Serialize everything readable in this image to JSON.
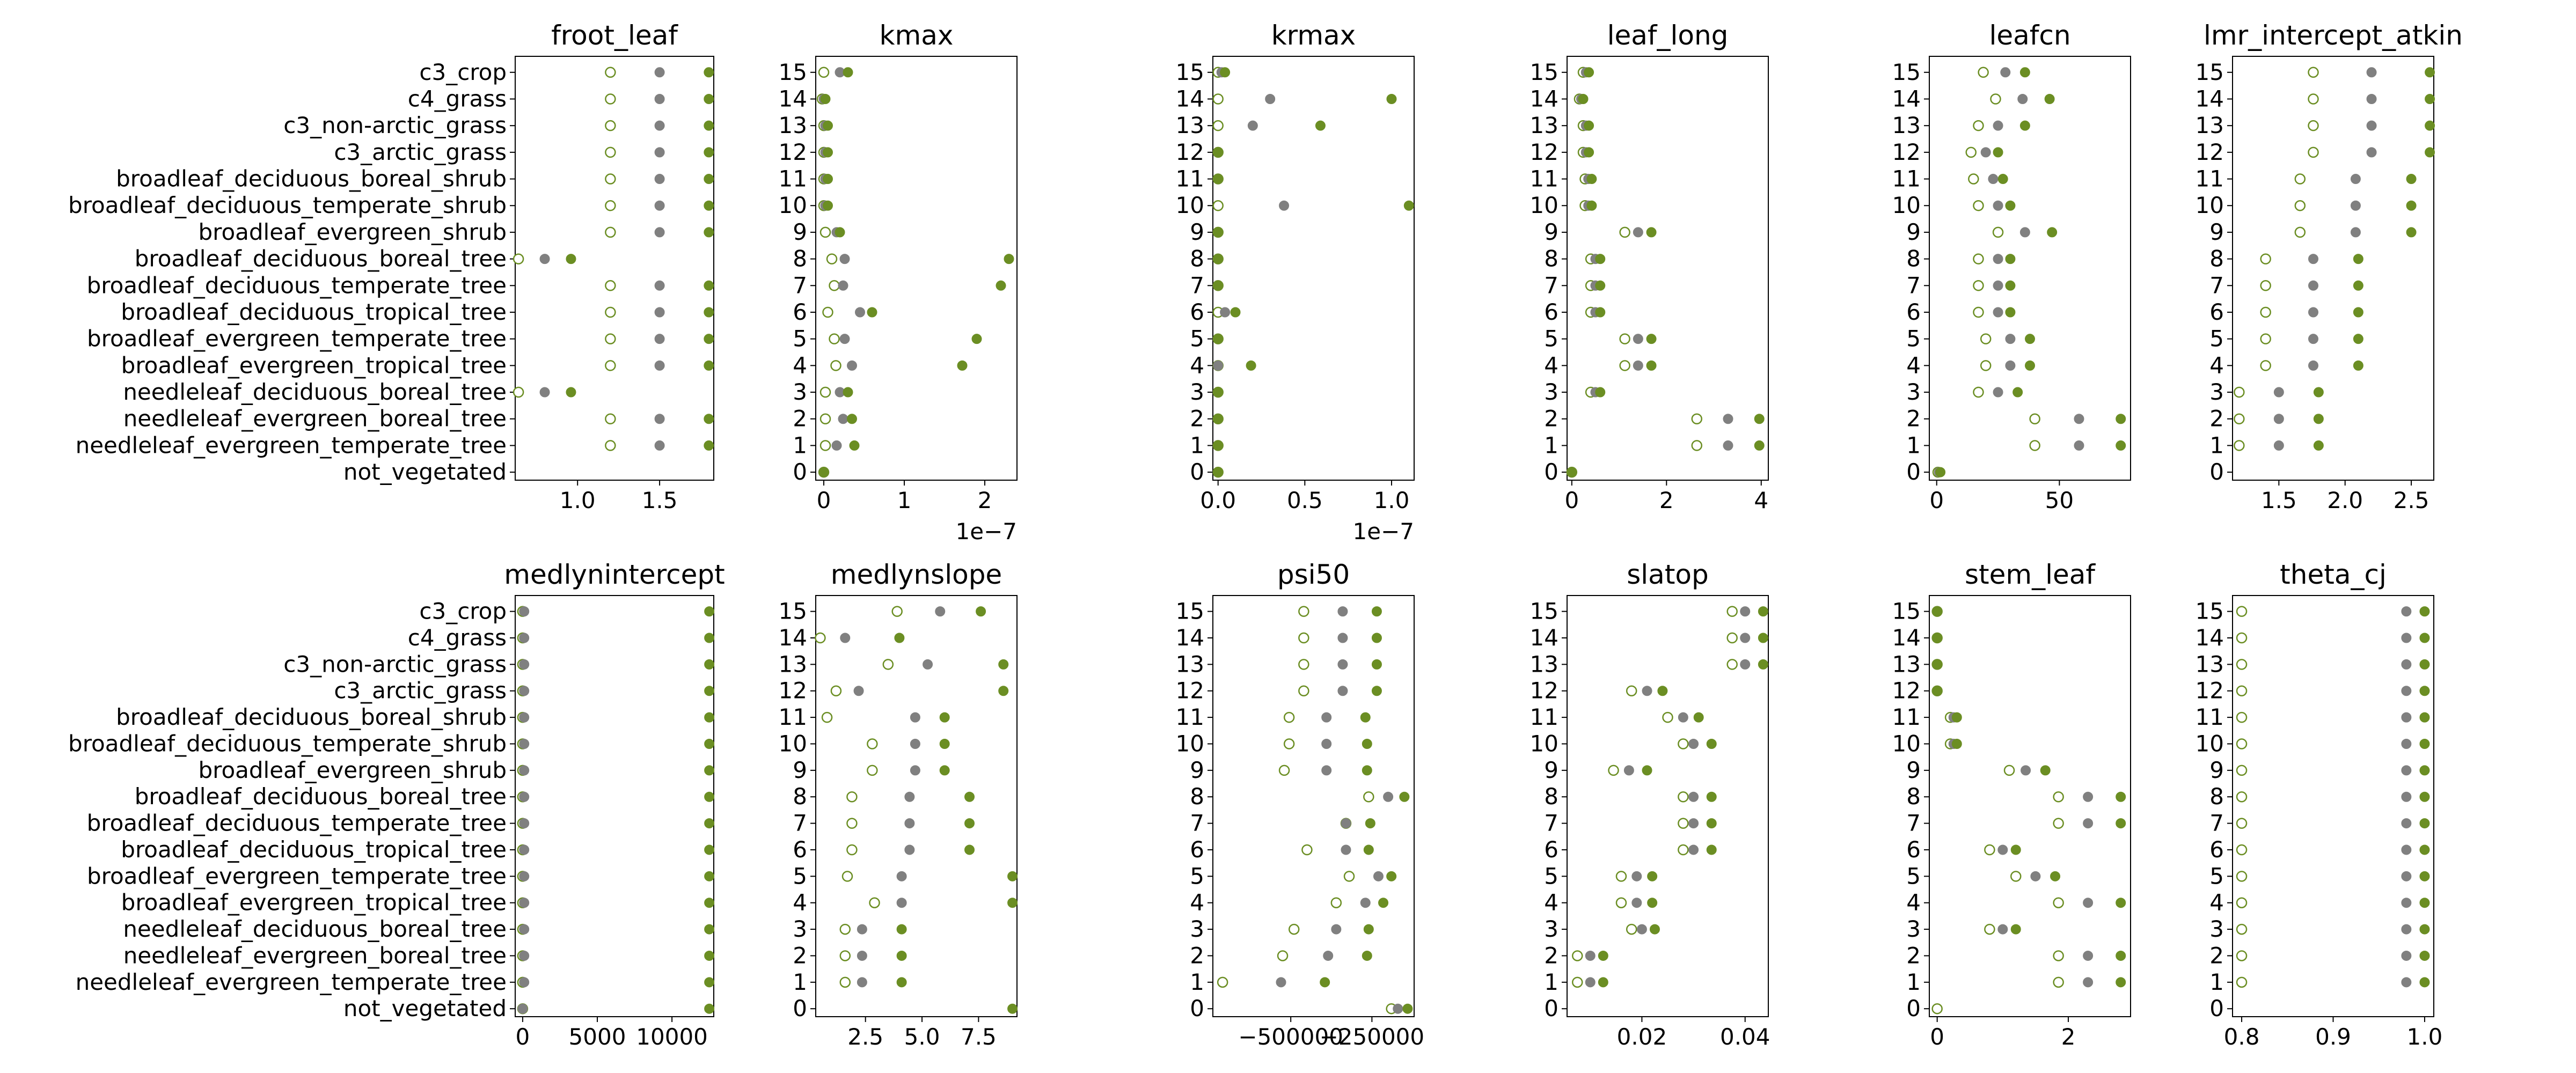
{
  "colors": {
    "ref": "#808080",
    "open": "#6b8e23",
    "filled": "#6b8e23",
    "frame": "#000000"
  },
  "pft_names": [
    "not_vegetated",
    "needleleaf_evergreen_temperate_tree",
    "needleleaf_evergreen_boreal_tree",
    "needleleaf_deciduous_boreal_tree",
    "broadleaf_evergreen_tropical_tree",
    "broadleaf_evergreen_temperate_tree",
    "broadleaf_deciduous_tropical_tree",
    "broadleaf_deciduous_temperate_tree",
    "broadleaf_deciduous_boreal_tree",
    "broadleaf_evergreen_shrub",
    "broadleaf_deciduous_temperate_shrub",
    "broadleaf_deciduous_boreal_shrub",
    "c3_arctic_grass",
    "c3_non-arctic_grass",
    "c4_grass",
    "c3_crop"
  ],
  "pft_numbers": [
    "0",
    "1",
    "2",
    "3",
    "4",
    "5",
    "6",
    "7",
    "8",
    "9",
    "10",
    "11",
    "12",
    "13",
    "14",
    "15"
  ],
  "chart_data": [
    {
      "type": "scatter",
      "title": "froot_leaf",
      "xlim": [
        0.62,
        1.83
      ],
      "xticks": [
        1.0,
        1.5
      ],
      "xtick_labels": [
        "1.0",
        "1.5"
      ],
      "offset_label": "",
      "ylabels": "names",
      "ylim": [
        -0.3,
        15.6
      ],
      "yticks": [
        0,
        1,
        2,
        3,
        4,
        5,
        6,
        7,
        8,
        9,
        10,
        11,
        12,
        13,
        14,
        15
      ],
      "ref": [
        null,
        1.5,
        1.5,
        0.8,
        1.5,
        1.5,
        1.5,
        1.5,
        0.8,
        1.5,
        1.5,
        1.5,
        1.5,
        1.5,
        1.5,
        1.5
      ],
      "low": [
        null,
        1.2,
        1.2,
        0.64,
        1.2,
        1.2,
        1.2,
        1.2,
        0.64,
        1.2,
        1.2,
        1.2,
        1.2,
        1.2,
        1.2,
        1.2
      ],
      "high": [
        null,
        1.8,
        1.8,
        0.96,
        1.8,
        1.8,
        1.8,
        1.8,
        0.96,
        1.8,
        1.8,
        1.8,
        1.8,
        1.8,
        1.8,
        1.8
      ]
    },
    {
      "type": "scatter",
      "title": "kmax",
      "xlim": [
        -0.1,
        2.4
      ],
      "xticks": [
        0,
        1,
        2
      ],
      "xtick_labels": [
        "0",
        "1",
        "2"
      ],
      "offset_label": "1e−7",
      "ylabels": "numbers",
      "ylim": [
        -0.3,
        15.6
      ],
      "yticks": [
        0,
        1,
        2,
        3,
        4,
        5,
        6,
        7,
        8,
        9,
        10,
        11,
        12,
        13,
        14,
        15
      ],
      "ref": [
        0,
        0.16,
        0.24,
        0.2,
        0.35,
        0.26,
        0.45,
        0.24,
        0.26,
        0.16,
        0.02,
        0.02,
        0.02,
        0.02,
        0.0,
        0.2
      ],
      "low": [
        0,
        0.02,
        0.02,
        0.02,
        0.15,
        0.13,
        0.05,
        0.13,
        0.1,
        0.02,
        0.0,
        0.0,
        0.0,
        0.0,
        -0.02,
        0.0
      ],
      "high": [
        0,
        0.38,
        0.35,
        0.3,
        1.72,
        1.9,
        0.6,
        2.2,
        2.3,
        0.2,
        0.05,
        0.05,
        0.05,
        0.05,
        0.02,
        0.3
      ]
    },
    {
      "type": "scatter",
      "title": "krmax",
      "xlim": [
        -0.03,
        1.13
      ],
      "xticks": [
        0.0,
        0.5,
        1.0
      ],
      "xtick_labels": [
        "0.0",
        "0.5",
        "1.0"
      ],
      "offset_label": "1e−7",
      "ylabels": "numbers",
      "ylim": [
        -0.3,
        15.6
      ],
      "yticks": [
        0,
        1,
        2,
        3,
        4,
        5,
        6,
        7,
        8,
        9,
        10,
        11,
        12,
        13,
        14,
        15
      ],
      "ref": [
        0,
        0,
        0,
        0,
        0,
        0,
        0.04,
        0.0,
        0.0,
        0.0,
        0.38,
        0.0,
        0.0,
        0.2,
        0.3,
        0.02
      ],
      "low": [
        0,
        0,
        0,
        0,
        0,
        0,
        0.0,
        0.0,
        0.0,
        0.0,
        0.0,
        0.0,
        0.0,
        0.0,
        0.0,
        0.0
      ],
      "high": [
        0,
        0,
        0,
        0,
        0.19,
        0,
        0.1,
        0.0,
        0.0,
        0.0,
        1.1,
        0.0,
        0.0,
        0.59,
        1.0,
        0.04
      ]
    },
    {
      "type": "scatter",
      "title": "leaf_long",
      "xlim": [
        -0.1,
        4.15
      ],
      "xticks": [
        0,
        2,
        4
      ],
      "xtick_labels": [
        "0",
        "2",
        "4"
      ],
      "offset_label": "",
      "ylabels": "numbers",
      "ylim": [
        -0.3,
        15.6
      ],
      "yticks": [
        0,
        1,
        2,
        3,
        4,
        5,
        6,
        7,
        8,
        9,
        10,
        11,
        12,
        13,
        14,
        15
      ],
      "ref": [
        0,
        3.3,
        3.3,
        0.5,
        1.4,
        1.4,
        0.5,
        0.5,
        0.5,
        1.4,
        0.35,
        0.35,
        0.3,
        0.3,
        0.2,
        0.3
      ],
      "low": [
        0,
        2.64,
        2.64,
        0.4,
        1.12,
        1.12,
        0.4,
        0.4,
        0.4,
        1.12,
        0.28,
        0.28,
        0.24,
        0.24,
        0.16,
        0.24
      ],
      "high": [
        0,
        3.96,
        3.96,
        0.6,
        1.68,
        1.68,
        0.6,
        0.6,
        0.6,
        1.68,
        0.42,
        0.42,
        0.36,
        0.36,
        0.24,
        0.36
      ]
    },
    {
      "type": "scatter",
      "title": "leafcn",
      "xlim": [
        -3,
        79
      ],
      "xticks": [
        0,
        50
      ],
      "xtick_labels": [
        "0",
        "50"
      ],
      "offset_label": "",
      "ylabels": "numbers",
      "ylim": [
        -0.3,
        15.6
      ],
      "yticks": [
        0,
        1,
        2,
        3,
        4,
        5,
        6,
        7,
        8,
        9,
        10,
        11,
        12,
        13,
        14,
        15
      ],
      "ref": [
        1,
        58,
        58,
        25,
        30,
        30,
        25,
        25,
        25,
        36,
        25,
        23,
        20,
        25,
        35,
        28
      ],
      "low": [
        0.5,
        40,
        40,
        17,
        20,
        20,
        17,
        17,
        17,
        25,
        17,
        15,
        14,
        17,
        24,
        19
      ],
      "high": [
        1.5,
        75,
        75,
        33,
        38,
        38,
        30,
        30,
        30,
        47,
        30,
        27,
        25,
        36,
        46,
        36
      ]
    },
    {
      "type": "scatter",
      "title": "lmr_intercept_atkin",
      "xlim": [
        1.15,
        2.67
      ],
      "xticks": [
        1.5,
        2.0,
        2.5
      ],
      "xtick_labels": [
        "1.5",
        "2.0",
        "2.5"
      ],
      "offset_label": "",
      "ylabels": "numbers",
      "ylim": [
        -0.3,
        15.6
      ],
      "yticks": [
        0,
        1,
        2,
        3,
        4,
        5,
        6,
        7,
        8,
        9,
        10,
        11,
        12,
        13,
        14,
        15
      ],
      "ref": [
        null,
        1.5,
        1.5,
        1.5,
        1.76,
        1.76,
        1.76,
        1.76,
        1.76,
        2.08,
        2.08,
        2.08,
        2.2,
        2.2,
        2.2,
        2.2
      ],
      "low": [
        null,
        1.2,
        1.2,
        1.2,
        1.4,
        1.4,
        1.4,
        1.4,
        1.4,
        1.66,
        1.66,
        1.66,
        1.76,
        1.76,
        1.76,
        1.76
      ],
      "high": [
        null,
        1.8,
        1.8,
        1.8,
        2.1,
        2.1,
        2.1,
        2.1,
        2.1,
        2.5,
        2.5,
        2.5,
        2.64,
        2.64,
        2.64,
        2.64
      ]
    },
    {
      "type": "scatter",
      "title": "medlynintercept",
      "xlim": [
        -500,
        12800
      ],
      "xticks": [
        0,
        5000,
        10000
      ],
      "xtick_labels": [
        "0",
        "5000",
        "10000"
      ],
      "offset_label": "",
      "ylabels": "names",
      "ylim": [
        -0.3,
        15.6
      ],
      "yticks": [
        0,
        1,
        2,
        3,
        4,
        5,
        6,
        7,
        8,
        9,
        10,
        11,
        12,
        13,
        14,
        15
      ],
      "ref": [
        0,
        100,
        100,
        100,
        100,
        100,
        100,
        100,
        100,
        100,
        100,
        100,
        100,
        100,
        100,
        100
      ],
      "low": [
        0,
        0,
        0,
        0,
        0,
        0,
        0,
        0,
        0,
        0,
        0,
        0,
        0,
        0,
        0,
        0
      ],
      "high": [
        12500,
        12500,
        12500,
        12500,
        12500,
        12500,
        12500,
        12500,
        12500,
        12500,
        12500,
        12500,
        12500,
        12500,
        12500,
        12500
      ]
    },
    {
      "type": "scatter",
      "title": "medlynslope",
      "xlim": [
        0.3,
        9.2
      ],
      "xticks": [
        2.5,
        5.0,
        7.5
      ],
      "xtick_labels": [
        "2.5",
        "5.0",
        "7.5"
      ],
      "offset_label": "",
      "ylabels": "numbers",
      "ylim": [
        -0.3,
        15.6
      ],
      "yticks": [
        0,
        1,
        2,
        3,
        4,
        5,
        6,
        7,
        8,
        9,
        10,
        11,
        12,
        13,
        14,
        15
      ],
      "ref": [
        null,
        2.35,
        2.35,
        2.35,
        4.1,
        4.1,
        4.45,
        4.45,
        4.45,
        4.7,
        4.7,
        4.7,
        2.2,
        5.25,
        1.6,
        5.8
      ],
      "low": [
        null,
        1.6,
        1.6,
        1.6,
        2.9,
        1.7,
        1.9,
        1.9,
        1.9,
        2.8,
        2.8,
        0.8,
        1.2,
        3.5,
        0.5,
        3.9
      ],
      "high": [
        9.0,
        4.1,
        4.1,
        4.1,
        9.0,
        9.0,
        7.1,
        7.1,
        7.1,
        6.0,
        6.0,
        6.0,
        8.6,
        8.6,
        4.0,
        7.6
      ]
    },
    {
      "type": "scatter",
      "title": "psi50",
      "xlim": [
        -740000,
        -120000
      ],
      "xticks": [
        -500000,
        -250000
      ],
      "xtick_labels": [
        "−500000",
        "−250000"
      ],
      "offset_label": "",
      "ylabels": "numbers",
      "ylim": [
        -0.3,
        15.6
      ],
      "yticks": [
        0,
        1,
        2,
        3,
        4,
        5,
        6,
        7,
        8,
        9,
        10,
        11,
        12,
        13,
        14,
        15
      ],
      "ref": [
        -170000,
        -530000,
        -385000,
        -360000,
        -270000,
        -230000,
        -330000,
        -330000,
        -200000,
        -390000,
        -390000,
        -390000,
        -340000,
        -340000,
        -340000,
        -340000
      ],
      "low": [
        -190000,
        -710000,
        -525000,
        -490000,
        -360000,
        -320000,
        -450000,
        -330000,
        -260000,
        -520000,
        -505000,
        -505000,
        -460000,
        -460000,
        -460000,
        -460000
      ],
      "high": [
        -140000,
        -395000,
        -265000,
        -260000,
        -215000,
        -190000,
        -260000,
        -255000,
        -150000,
        -265000,
        -265000,
        -270000,
        -235000,
        -235000,
        -235000,
        -235000
      ]
    },
    {
      "type": "scatter",
      "title": "slatop",
      "xlim": [
        0.0055,
        0.0445
      ],
      "xticks": [
        0.02,
        0.04
      ],
      "xtick_labels": [
        "0.02",
        "0.04"
      ],
      "offset_label": "",
      "ylabels": "numbers",
      "ylim": [
        -0.3,
        15.6
      ],
      "yticks": [
        0,
        1,
        2,
        3,
        4,
        5,
        6,
        7,
        8,
        9,
        10,
        11,
        12,
        13,
        14,
        15
      ],
      "ref": [
        null,
        0.01,
        0.01,
        0.02,
        0.019,
        0.019,
        0.03,
        0.03,
        0.03,
        0.0175,
        0.03,
        0.028,
        0.021,
        0.04,
        0.04,
        0.04
      ],
      "low": [
        null,
        0.0075,
        0.0075,
        0.018,
        0.016,
        0.016,
        0.028,
        0.028,
        0.028,
        0.0145,
        0.028,
        0.025,
        0.018,
        0.0375,
        0.0375,
        0.0375
      ],
      "high": [
        null,
        0.0125,
        0.0125,
        0.0225,
        0.022,
        0.022,
        0.0335,
        0.0335,
        0.0335,
        0.021,
        0.0335,
        0.031,
        0.024,
        0.0435,
        0.0435,
        0.0435
      ]
    },
    {
      "type": "scatter",
      "title": "stem_leaf",
      "xlim": [
        -0.12,
        2.95
      ],
      "xticks": [
        0,
        2
      ],
      "xtick_labels": [
        "0",
        "2"
      ],
      "offset_label": "",
      "ylabels": "numbers",
      "ylim": [
        -0.3,
        15.6
      ],
      "yticks": [
        0,
        1,
        2,
        3,
        4,
        5,
        6,
        7,
        8,
        9,
        10,
        11,
        12,
        13,
        14,
        15
      ],
      "ref": [
        null,
        2.3,
        2.3,
        1.0,
        2.3,
        1.5,
        1.0,
        2.3,
        2.3,
        1.35,
        0.25,
        0.25,
        0,
        0,
        0,
        0
      ],
      "low": [
        0,
        1.85,
        1.85,
        0.8,
        1.85,
        1.2,
        0.8,
        1.85,
        1.85,
        1.1,
        0.2,
        0.2,
        0,
        0,
        0,
        0
      ],
      "high": [
        null,
        2.8,
        2.8,
        1.2,
        2.8,
        1.8,
        1.2,
        2.8,
        2.8,
        1.65,
        0.3,
        0.3,
        0,
        0,
        0,
        0
      ]
    },
    {
      "type": "scatter",
      "title": "theta_cj",
      "xlim": [
        0.79,
        1.01
      ],
      "xticks": [
        0.8,
        0.9,
        1.0
      ],
      "xtick_labels": [
        "0.8",
        "0.9",
        "1.0"
      ],
      "offset_label": "",
      "ylabels": "numbers",
      "ylim": [
        -0.3,
        15.6
      ],
      "yticks": [
        0,
        1,
        2,
        3,
        4,
        5,
        6,
        7,
        8,
        9,
        10,
        11,
        12,
        13,
        14,
        15
      ],
      "ref": [
        null,
        0.98,
        0.98,
        0.98,
        0.98,
        0.98,
        0.98,
        0.98,
        0.98,
        0.98,
        0.98,
        0.98,
        0.98,
        0.98,
        0.98,
        0.98
      ],
      "low": [
        null,
        0.8,
        0.8,
        0.8,
        0.8,
        0.8,
        0.8,
        0.8,
        0.8,
        0.8,
        0.8,
        0.8,
        0.8,
        0.8,
        0.8,
        0.8
      ],
      "high": [
        null,
        1.0,
        1.0,
        1.0,
        1.0,
        1.0,
        1.0,
        1.0,
        1.0,
        1.0,
        1.0,
        1.0,
        1.0,
        1.0,
        1.0,
        1.0
      ]
    }
  ]
}
